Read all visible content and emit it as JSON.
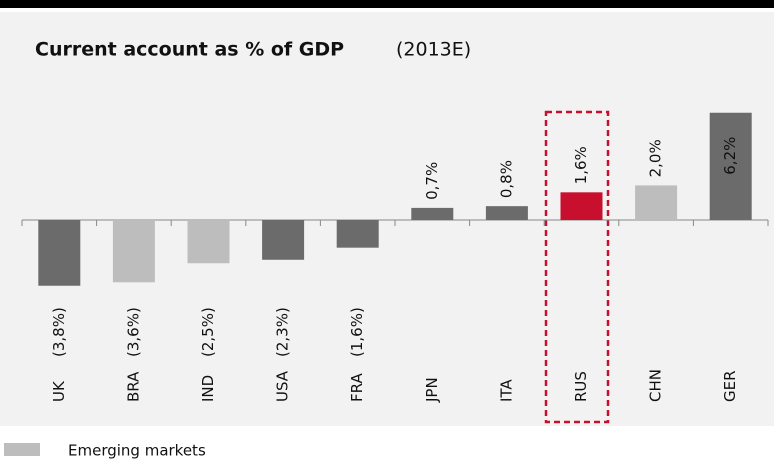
{
  "chart_data": {
    "type": "bar",
    "title": "Current account as % of GDP",
    "subtitle": "(2013E)",
    "categories": [
      "UK",
      "BRA",
      "IND",
      "USA",
      "FRA",
      "JPN",
      "ITA",
      "RUS",
      "CHN",
      "GER"
    ],
    "values": [
      -3.8,
      -3.6,
      -2.5,
      -2.3,
      -1.6,
      0.7,
      0.8,
      1.6,
      2.0,
      6.2
    ],
    "value_labels": [
      "(3,8%)",
      "(3,6%)",
      "(2,5%)",
      "(2,3%)",
      "(1,6%)",
      "0,7%",
      "0,8%",
      "1,6%",
      "2,0%",
      "6,2%"
    ],
    "colors": [
      "#6b6b6b",
      "#bdbdbd",
      "#bdbdbd",
      "#6b6b6b",
      "#6b6b6b",
      "#6b6b6b",
      "#6b6b6b",
      "#c8102e",
      "#bdbdbd",
      "#6b6b6b"
    ],
    "legend": [
      {
        "name": "Emerging markets",
        "color": "#bdbdbd"
      }
    ]
  }
}
